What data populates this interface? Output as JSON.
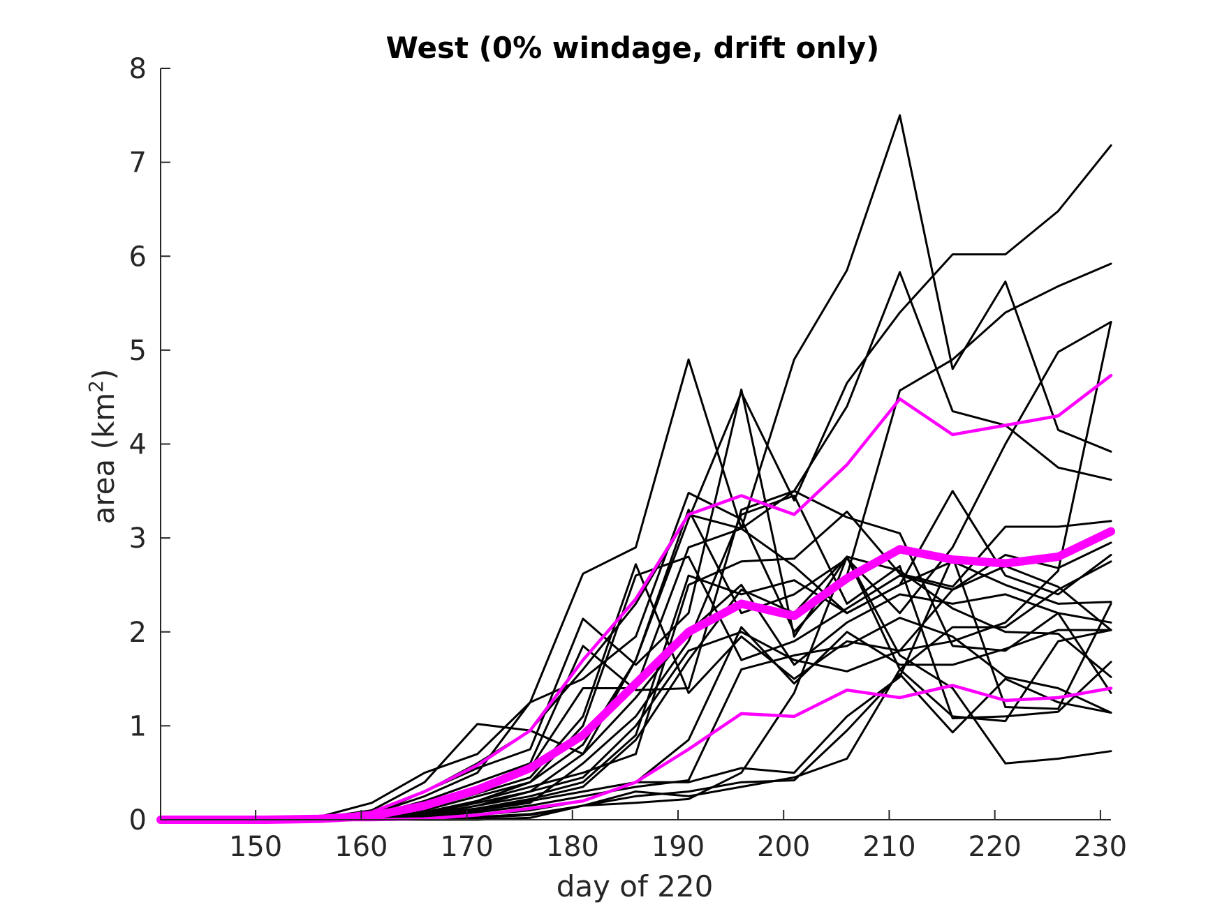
{
  "chart_data": {
    "type": "line",
    "title": "West (0% windage, drift only)",
    "xlabel": "day of 220",
    "ylabel_main": "area (km",
    "ylabel_sup": "2",
    "ylabel_close": ")",
    "xlim": [
      141,
      231
    ],
    "ylim": [
      0,
      8
    ],
    "xticks": [
      150,
      160,
      170,
      180,
      190,
      200,
      210,
      220,
      230
    ],
    "yticks": [
      0,
      1,
      2,
      3,
      4,
      5,
      6,
      7,
      8
    ],
    "grid": false,
    "x": [
      141,
      146,
      151,
      156,
      161,
      166,
      171,
      176,
      181,
      186,
      191,
      196,
      201,
      206,
      211,
      216,
      221,
      226,
      231
    ],
    "colors": {
      "ensemble": "#000000",
      "statistics": "#ff00ff",
      "axis": "#262626"
    },
    "series": [
      {
        "style": "ensemble",
        "values": [
          0,
          0,
          0,
          0.03,
          0.18,
          0.5,
          0.7,
          1.25,
          2.62,
          2.9,
          4.9,
          3.1,
          4.9,
          5.85,
          7.5,
          4.8,
          5.73,
          4.15,
          3.92
        ]
      },
      {
        "style": "ensemble",
        "values": [
          0,
          0,
          0,
          0.02,
          0.1,
          0.4,
          1.02,
          0.95,
          0.7,
          1.7,
          3.2,
          4.55,
          3.4,
          4.65,
          5.4,
          6.02,
          6.02,
          6.48,
          7.18
        ]
      },
      {
        "style": "ensemble",
        "values": [
          0,
          0,
          0,
          0.02,
          0.08,
          0.3,
          0.6,
          0.95,
          1.6,
          2.3,
          3.25,
          3.1,
          3.5,
          4.4,
          5.83,
          4.35,
          4.2,
          3.75,
          3.62
        ]
      },
      {
        "style": "ensemble",
        "values": [
          0,
          0,
          0,
          0.01,
          0.06,
          0.25,
          0.5,
          1.25,
          1.5,
          1.95,
          3.48,
          3.2,
          2.0,
          2.6,
          4.57,
          4.9,
          5.4,
          5.68,
          5.92
        ]
      },
      {
        "style": "ensemble",
        "values": [
          0,
          0,
          0,
          0.01,
          0.05,
          0.3,
          0.55,
          0.75,
          2.14,
          1.65,
          2.2,
          4.58,
          1.95,
          2.8,
          2.65,
          2.25,
          2.0,
          1.98,
          1.52
        ]
      },
      {
        "style": "ensemble",
        "values": [
          0,
          0,
          0,
          0.01,
          0.05,
          0.2,
          0.4,
          0.6,
          1.85,
          1.38,
          1.4,
          3.3,
          3.5,
          3.22,
          3.05,
          1.85,
          1.8,
          2.2,
          1.35
        ]
      },
      {
        "style": "ensemble",
        "values": [
          0,
          0,
          0,
          0.01,
          0.04,
          0.15,
          0.35,
          0.55,
          1.4,
          1.4,
          2.9,
          3.1,
          2.7,
          2.2,
          2.5,
          3.5,
          2.6,
          2.4,
          2.82
        ]
      },
      {
        "style": "ensemble",
        "values": [
          0,
          0,
          0,
          0,
          0.03,
          0.12,
          0.28,
          0.45,
          1.1,
          2.72,
          1.35,
          1.95,
          1.5,
          1.9,
          1.8,
          1.9,
          2.1,
          2.65,
          5.3
        ]
      },
      {
        "style": "ensemble",
        "values": [
          0,
          0,
          0,
          0,
          0.03,
          0.1,
          0.25,
          0.4,
          0.8,
          1.7,
          3.3,
          2.2,
          2.4,
          2.78,
          2.2,
          2.9,
          4.0,
          4.98,
          5.3
        ]
      },
      {
        "style": "ensemble",
        "values": [
          0,
          0,
          0,
          0,
          0.02,
          0.08,
          0.2,
          0.35,
          0.5,
          0.7,
          2.5,
          2.75,
          2.78,
          3.28,
          2.62,
          2.48,
          3.12,
          3.12,
          3.18
        ]
      },
      {
        "style": "ensemble",
        "values": [
          0,
          0,
          0,
          0,
          0.02,
          0.07,
          0.18,
          0.3,
          0.45,
          1.0,
          1.8,
          2.0,
          1.7,
          1.58,
          1.8,
          2.45,
          2.82,
          2.68,
          2.95
        ]
      },
      {
        "style": "ensemble",
        "values": [
          0,
          0,
          0,
          0,
          0.02,
          0.06,
          0.15,
          0.25,
          0.4,
          0.9,
          2.6,
          2.4,
          2.55,
          2.2,
          2.5,
          2.75,
          2.5,
          2.3,
          2.32
        ]
      },
      {
        "style": "ensemble",
        "values": [
          0,
          0,
          0,
          0,
          0.01,
          0.05,
          0.12,
          0.22,
          0.35,
          0.85,
          1.7,
          2.45,
          2.2,
          2.8,
          1.6,
          2.05,
          2.05,
          2.45,
          2.75
        ]
      },
      {
        "style": "ensemble",
        "values": [
          0,
          0,
          0,
          0,
          0.01,
          0.04,
          0.1,
          0.2,
          0.3,
          0.4,
          0.85,
          2.05,
          1.45,
          2.0,
          1.65,
          1.65,
          1.82,
          2.02,
          2.02
        ]
      },
      {
        "style": "ensemble",
        "values": [
          0,
          0,
          0,
          0,
          0.01,
          0.03,
          0.08,
          0.15,
          0.25,
          0.35,
          0.42,
          1.6,
          1.75,
          1.85,
          2.15,
          1.95,
          1.52,
          1.4,
          1.14
        ]
      },
      {
        "style": "ensemble",
        "values": [
          0,
          0,
          0,
          0,
          0,
          0.02,
          0.05,
          0.1,
          0.2,
          0.4,
          0.4,
          0.55,
          0.5,
          1.1,
          1.52,
          2.8,
          1.2,
          1.18,
          2.3
        ]
      },
      {
        "style": "ensemble",
        "values": [
          0,
          0,
          0,
          0,
          0,
          0.01,
          0.03,
          0.06,
          0.15,
          0.3,
          0.25,
          0.35,
          0.45,
          0.65,
          1.6,
          1.1,
          1.05,
          1.9,
          2.02
        ]
      },
      {
        "style": "ensemble",
        "values": [
          0,
          0,
          0,
          0,
          0,
          0.01,
          0.02,
          0.05,
          0.15,
          0.25,
          0.3,
          0.4,
          0.42,
          0.95,
          1.55,
          0.93,
          1.5,
          1.25,
          1.14
        ]
      },
      {
        "style": "ensemble",
        "values": [
          0,
          0,
          0,
          0,
          0,
          0,
          0,
          0.02,
          0.15,
          0.18,
          0.22,
          0.5,
          1.35,
          2.8,
          1.75,
          1.4,
          0.6,
          0.65,
          0.73
        ]
      },
      {
        "style": "ensemble",
        "values": [
          0,
          0,
          0,
          0,
          0.01,
          0.04,
          0.1,
          0.18,
          0.6,
          1.1,
          1.9,
          3.25,
          3.45,
          2.3,
          2.7,
          1.08,
          1.1,
          1.15,
          1.68
        ]
      },
      {
        "style": "ensemble",
        "values": [
          0,
          0,
          0,
          0,
          0.02,
          0.08,
          0.2,
          0.4,
          1.0,
          2.6,
          2.8,
          1.7,
          1.9,
          2.25,
          2.6,
          2.45,
          2.7,
          2.48,
          2.02
        ]
      },
      {
        "style": "ensemble",
        "values": [
          0,
          0,
          0,
          0,
          0.01,
          0.05,
          0.15,
          0.3,
          0.7,
          1.3,
          2.0,
          2.5,
          1.65,
          2.1,
          2.4,
          2.3,
          2.4,
          2.2,
          2.1
        ]
      },
      {
        "style": "upper",
        "values": [
          0,
          0,
          0,
          0.02,
          0.08,
          0.3,
          0.58,
          0.95,
          1.7,
          2.35,
          3.25,
          3.45,
          3.25,
          3.78,
          4.48,
          4.1,
          4.2,
          4.3,
          4.73
        ]
      },
      {
        "style": "mean",
        "values": [
          0,
          0,
          0,
          0.01,
          0.04,
          0.15,
          0.32,
          0.55,
          0.9,
          1.45,
          2.0,
          2.3,
          2.17,
          2.57,
          2.88,
          2.77,
          2.73,
          2.8,
          3.07
        ]
      },
      {
        "style": "lower",
        "values": [
          0,
          0,
          0,
          0,
          0,
          0.01,
          0.05,
          0.12,
          0.2,
          0.4,
          0.75,
          1.13,
          1.1,
          1.38,
          1.3,
          1.43,
          1.27,
          1.3,
          1.4
        ]
      }
    ]
  }
}
